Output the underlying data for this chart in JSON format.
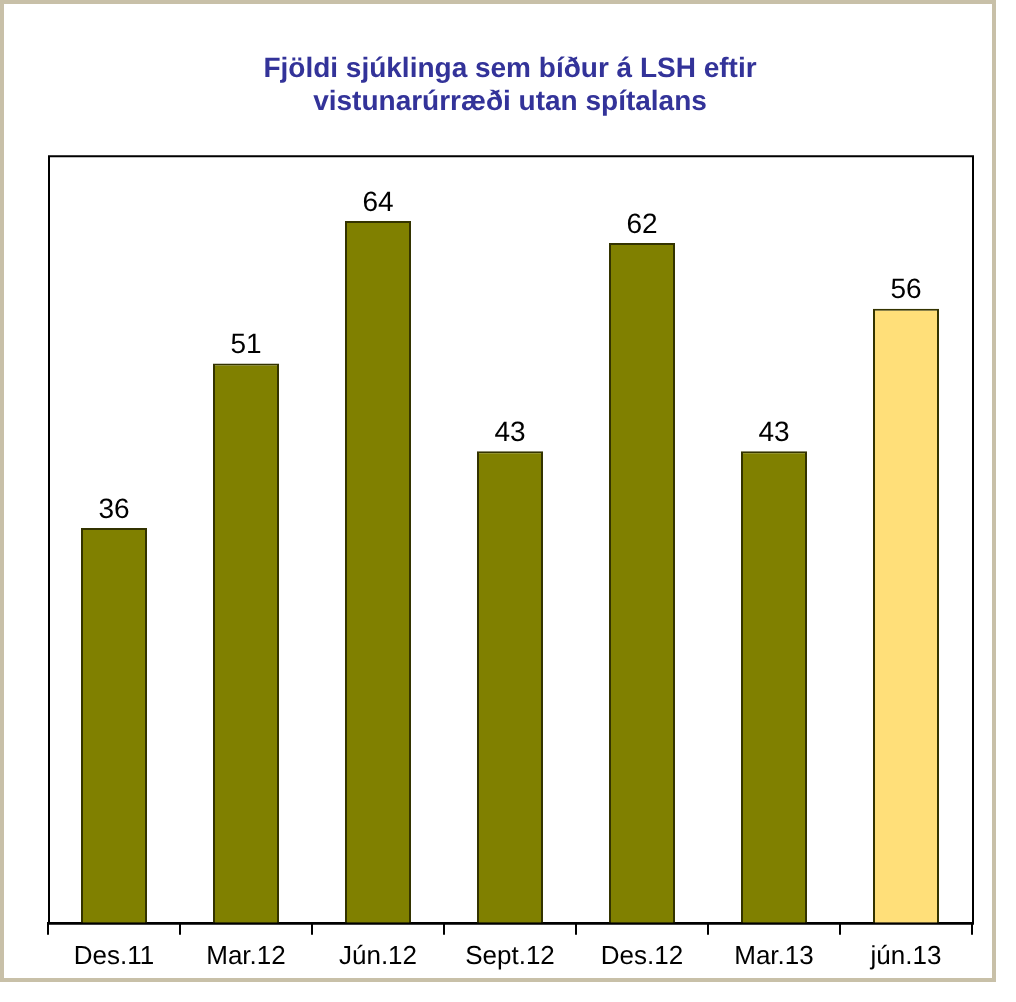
{
  "chart_data": {
    "type": "bar",
    "title": "Fjöldi sjúklinga sem bíður á LSH eftir vistunarúrræði utan spítalans",
    "categories": [
      "Des.11",
      "Mar.12",
      "Jún.12",
      "Sept.12",
      "Des.12",
      "Mar.13",
      "jún.13"
    ],
    "values": [
      36,
      51,
      64,
      43,
      62,
      43,
      56
    ],
    "colors": [
      "#808000",
      "#808000",
      "#808000",
      "#808000",
      "#808000",
      "#808000",
      "#ffdf79"
    ],
    "data_labels": true,
    "grid": false,
    "legend": false
  }
}
